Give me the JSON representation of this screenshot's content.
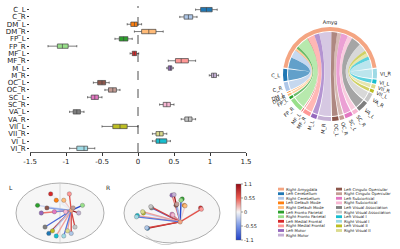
{
  "chart_data": [
    {
      "type": "box",
      "orientation": "horizontal",
      "categories": [
        "C_L",
        "C_R",
        "DM_L",
        "DM_R",
        "FP_L",
        "FP_R",
        "MF_L",
        "MF_R",
        "M_L",
        "M_R",
        "OC_L",
        "OC_R",
        "SC_L",
        "SC_R",
        "VA_L",
        "VA_R",
        "VII_L",
        "VII_R",
        "VI_L",
        "VI_R"
      ],
      "colors": [
        "#1f77b4",
        "#aec7e8",
        "#ff7f0e",
        "#ffbb78",
        "#2ca02c",
        "#98df8a",
        "#d62728",
        "#ff9896",
        "#9467bd",
        "#c5b0d5",
        "#8c564b",
        "#c49c94",
        "#e377c2",
        "#f7b6d2",
        "#7f7f7f",
        "#c7c7c7",
        "#bcbd22",
        "#dbdb8d",
        "#17becf",
        "#9edae5"
      ],
      "lowerfence": [
        0.8,
        0.58,
        -0.15,
        -0.05,
        -0.32,
        -1.25,
        -0.11,
        0.42,
        0.4,
        0.99,
        -0.62,
        -0.46,
        -0.7,
        0.3,
        -0.95,
        0.6,
        -0.5,
        0.2,
        0.2,
        -0.95
      ],
      "q1": [
        0.87,
        0.64,
        -0.1,
        0.05,
        -0.26,
        -1.12,
        -0.08,
        0.52,
        0.42,
        1.02,
        -0.56,
        -0.41,
        -0.65,
        0.35,
        -0.9,
        0.65,
        -0.35,
        0.25,
        0.25,
        -0.85
      ],
      "median": [
        0.95,
        0.7,
        -0.05,
        0.15,
        -0.2,
        -1.05,
        -0.05,
        0.6,
        0.45,
        1.05,
        -0.5,
        -0.35,
        -0.6,
        0.4,
        -0.85,
        0.7,
        -0.25,
        0.3,
        0.3,
        -0.75
      ],
      "q3": [
        1.03,
        0.76,
        -0.01,
        0.25,
        -0.14,
        -0.97,
        -0.02,
        0.7,
        0.47,
        1.09,
        -0.45,
        -0.3,
        -0.55,
        0.45,
        -0.8,
        0.75,
        -0.15,
        0.35,
        0.4,
        -0.7
      ],
      "upperfence": [
        1.1,
        0.82,
        0.05,
        0.35,
        -0.08,
        -0.85,
        0.01,
        0.8,
        0.49,
        1.12,
        -0.4,
        -0.25,
        -0.5,
        0.5,
        -0.75,
        0.8,
        0,
        0.4,
        0.45,
        -0.6
      ],
      "xlim": [
        -1.5,
        1.5
      ],
      "xticks": [
        -1.5,
        -1,
        -0.5,
        0,
        0.5,
        1,
        1.5
      ],
      "reference_line": 0,
      "grid": false
    },
    {
      "type": "chord",
      "nodes": [
        {
          "label": "Amyg",
          "color": "#f4a582"
        },
        {
          "label": "C_L",
          "color": "#1f77b4"
        },
        {
          "label": "C_R",
          "color": "#aec7e8"
        },
        {
          "label": "DM_L",
          "color": "#ff7f0e"
        },
        {
          "label": "DM_R",
          "color": "#ffbb78"
        },
        {
          "label": "FP_L",
          "color": "#2ca02c"
        },
        {
          "label": "FP_R",
          "color": "#98df8a"
        },
        {
          "label": "MF_L",
          "color": "#d62728"
        },
        {
          "label": "MF_R",
          "color": "#ff9896"
        },
        {
          "label": "M_L",
          "color": "#9467bd"
        },
        {
          "label": "M_R",
          "color": "#c5b0d5"
        },
        {
          "label": "OC_L",
          "color": "#8c564b"
        },
        {
          "label": "OC_R",
          "color": "#c49c94"
        },
        {
          "label": "SC_L",
          "color": "#e377c2"
        },
        {
          "label": "SC_R",
          "color": "#f7b6d2"
        },
        {
          "label": "VA_L",
          "color": "#7f7f7f"
        },
        {
          "label": "VA_R",
          "color": "#c7c7c7"
        },
        {
          "label": "VII_L",
          "color": "#bcbd22"
        },
        {
          "label": "VII_R",
          "color": "#dbdb8d"
        },
        {
          "label": "VI_L",
          "color": "#17becf"
        },
        {
          "label": "VI_R",
          "color": "#9edae5"
        }
      ],
      "links": [
        {
          "source": "Amyg",
          "target": "C_L",
          "value": 0.95
        },
        {
          "source": "Amyg",
          "target": "C_R",
          "value": 0.7
        },
        {
          "source": "Amyg",
          "target": "DM_L",
          "value": 0.05
        },
        {
          "source": "Amyg",
          "target": "DM_R",
          "value": 0.15
        },
        {
          "source": "Amyg",
          "target": "FP_L",
          "value": 0.2
        },
        {
          "source": "Amyg",
          "target": "FP_R",
          "value": 1.05
        },
        {
          "source": "Amyg",
          "target": "MF_L",
          "value": 0.05
        },
        {
          "source": "Amyg",
          "target": "MF_R",
          "value": 0.6
        },
        {
          "source": "Amyg",
          "target": "M_L",
          "value": 0.45
        },
        {
          "source": "Amyg",
          "target": "M_R",
          "value": 1.05
        },
        {
          "source": "Amyg",
          "target": "OC_L",
          "value": 0.5
        },
        {
          "source": "Amyg",
          "target": "OC_R",
          "value": 0.35
        },
        {
          "source": "Amyg",
          "target": "SC_L",
          "value": 0.6
        },
        {
          "source": "Amyg",
          "target": "SC_R",
          "value": 0.4
        },
        {
          "source": "Amyg",
          "target": "VA_L",
          "value": 0.85
        },
        {
          "source": "Amyg",
          "target": "VA_R",
          "value": 0.7
        },
        {
          "source": "Amyg",
          "target": "VII_L",
          "value": 0.25
        },
        {
          "source": "Amyg",
          "target": "VII_R",
          "value": 0.3
        },
        {
          "source": "Amyg",
          "target": "VI_L",
          "value": 0.3
        },
        {
          "source": "Amyg",
          "target": "VI_R",
          "value": 0.75
        }
      ]
    },
    {
      "type": "brain_network",
      "hemisphere_labels": [
        "L",
        "R"
      ],
      "nodes": [
        {
          "name": "Amyg",
          "color": "#f4a582",
          "axial": [
            0.3,
            0.1
          ],
          "sagittal": [
            0.2,
            -0.35
          ]
        },
        {
          "name": "C_L",
          "color": "#1f77b4",
          "axial": [
            -0.3,
            -0.8
          ],
          "sagittal": [
            -0.6,
            -0.6
          ]
        },
        {
          "name": "C_R",
          "color": "#aec7e8",
          "axial": [
            0.3,
            -0.8
          ],
          "sagittal": [
            -0.62,
            -0.58
          ]
        },
        {
          "name": "DM_L",
          "color": "#ff7f0e",
          "axial": [
            -0.1,
            0.5
          ],
          "sagittal": [
            0.3,
            0.3
          ]
        },
        {
          "name": "DM_R",
          "color": "#ffbb78",
          "axial": [
            0.1,
            0.5
          ],
          "sagittal": [
            0.32,
            0.28
          ]
        },
        {
          "name": "FP_L",
          "color": "#2ca02c",
          "axial": [
            -0.6,
            0.3
          ],
          "sagittal": [
            0.25,
            0.55
          ]
        },
        {
          "name": "FP_R",
          "color": "#98df8a",
          "axial": [
            0.6,
            0.3
          ],
          "sagittal": [
            0.22,
            0.5
          ]
        },
        {
          "name": "MF_L",
          "color": "#d62728",
          "axial": [
            -0.25,
            0.75
          ],
          "sagittal": [
            0.7,
            0.2
          ]
        },
        {
          "name": "MF_R",
          "color": "#ff9896",
          "axial": [
            0.25,
            0.75
          ],
          "sagittal": [
            0.72,
            0.15
          ]
        },
        {
          "name": "M_L",
          "color": "#9467bd",
          "axial": [
            -0.5,
            0.0
          ],
          "sagittal": [
            0.0,
            0.7
          ]
        },
        {
          "name": "M_R",
          "color": "#c5b0d5",
          "axial": [
            0.5,
            0.0
          ],
          "sagittal": [
            0.05,
            0.72
          ]
        },
        {
          "name": "OC_L",
          "color": "#8c564b",
          "axial": [
            -0.35,
            0.2
          ],
          "sagittal": [
            0.1,
            0.3
          ]
        },
        {
          "name": "OC_R",
          "color": "#c49c94",
          "axial": [
            0.35,
            0.2
          ],
          "sagittal": [
            0.12,
            0.35
          ]
        },
        {
          "name": "SC_L",
          "color": "#e377c2",
          "axial": [
            -0.15,
            0.05
          ],
          "sagittal": [
            0.0,
            -0.05
          ]
        },
        {
          "name": "SC_R",
          "color": "#f7b6d2",
          "axial": [
            0.15,
            0.05
          ],
          "sagittal": [
            0.02,
            -0.08
          ]
        },
        {
          "name": "VA_L",
          "color": "#7f7f7f",
          "axial": [
            -0.4,
            -0.55
          ],
          "sagittal": [
            -0.5,
            0.2
          ]
        },
        {
          "name": "VA_R",
          "color": "#c7c7c7",
          "axial": [
            0.4,
            -0.55
          ],
          "sagittal": [
            -0.52,
            0.25
          ]
        },
        {
          "name": "VII_L",
          "color": "#bcbd22",
          "axial": [
            -0.2,
            -0.7
          ],
          "sagittal": [
            -0.7,
            0.0
          ]
        },
        {
          "name": "VII_R",
          "color": "#dbdb8d",
          "axial": [
            0.2,
            -0.7
          ],
          "sagittal": [
            -0.72,
            0.05
          ]
        },
        {
          "name": "VI_L",
          "color": "#17becf",
          "axial": [
            -0.1,
            -0.9
          ],
          "sagittal": [
            -0.85,
            -0.1
          ]
        },
        {
          "name": "VI_R",
          "color": "#9edae5",
          "axial": [
            0.1,
            -0.9
          ],
          "sagittal": [
            -0.87,
            -0.15
          ]
        }
      ],
      "edges": [
        {
          "source": "Amyg",
          "target": "C_L",
          "value": 0.95
        },
        {
          "source": "Amyg",
          "target": "C_R",
          "value": 0.7
        },
        {
          "source": "Amyg",
          "target": "DM_L",
          "value": -0.05
        },
        {
          "source": "Amyg",
          "target": "DM_R",
          "value": 0.15
        },
        {
          "source": "Amyg",
          "target": "FP_L",
          "value": -0.2
        },
        {
          "source": "Amyg",
          "target": "FP_R",
          "value": -1.05
        },
        {
          "source": "Amyg",
          "target": "MF_L",
          "value": -0.05
        },
        {
          "source": "Amyg",
          "target": "MF_R",
          "value": 0.6
        },
        {
          "source": "Amyg",
          "target": "M_L",
          "value": 0.45
        },
        {
          "source": "Amyg",
          "target": "M_R",
          "value": 1.05
        },
        {
          "source": "Amyg",
          "target": "OC_L",
          "value": -0.5
        },
        {
          "source": "Amyg",
          "target": "OC_R",
          "value": -0.35
        },
        {
          "source": "Amyg",
          "target": "SC_L",
          "value": -0.6
        },
        {
          "source": "Amyg",
          "target": "SC_R",
          "value": 0.4
        },
        {
          "source": "Amyg",
          "target": "VA_L",
          "value": -0.85
        },
        {
          "source": "Amyg",
          "target": "VA_R",
          "value": 0.7
        },
        {
          "source": "Amyg",
          "target": "VII_L",
          "value": -0.25
        },
        {
          "source": "Amyg",
          "target": "VII_R",
          "value": 0.3
        },
        {
          "source": "Amyg",
          "target": "VI_L",
          "value": 0.3
        },
        {
          "source": "Amyg",
          "target": "VI_R",
          "value": -0.75
        }
      ],
      "colorbar_range": [
        -1.1,
        1.1
      ],
      "colorbar_ticks": [
        1.1,
        0.55,
        0,
        -0.55,
        -1.1
      ]
    }
  ],
  "region_legend": [
    {
      "label": "Right Amygdala",
      "color": "#f4a582"
    },
    {
      "label": "Left Cerebellum",
      "color": "#1f77b4"
    },
    {
      "label": "Right Cerebellum",
      "color": "#aec7e8"
    },
    {
      "label": "Left Default Mode",
      "color": "#ff7f0e"
    },
    {
      "label": "Right Default Mode",
      "color": "#ffbb78"
    },
    {
      "label": "Left Fronto Parietal",
      "color": "#2ca02c"
    },
    {
      "label": "Right Fronto Parietal",
      "color": "#98df8a"
    },
    {
      "label": "Left Medial Frontal",
      "color": "#d62728"
    },
    {
      "label": "Right Medial Frontal",
      "color": "#ff9896"
    },
    {
      "label": "Left Motor",
      "color": "#9467bd"
    },
    {
      "label": "Right Motor",
      "color": "#c5b0d5"
    },
    {
      "label": "Left Cingulo Opercular",
      "color": "#8c564b"
    },
    {
      "label": "Right Cingulo Opercular",
      "color": "#c49c94"
    },
    {
      "label": "Left Subcortical",
      "color": "#e377c2"
    },
    {
      "label": "Right Subcortical",
      "color": "#f7b6d2"
    },
    {
      "label": "Left Visual Association",
      "color": "#7f7f7f"
    },
    {
      "label": "Right Visual Association",
      "color": "#c7c7c7"
    },
    {
      "label": "Left Visual I",
      "color": "#17becf"
    },
    {
      "label": "Right Visual I",
      "color": "#9edae5"
    },
    {
      "label": "Left Visual II",
      "color": "#bcbd22"
    },
    {
      "label": "Right Visual II",
      "color": "#dbdb8d"
    }
  ]
}
